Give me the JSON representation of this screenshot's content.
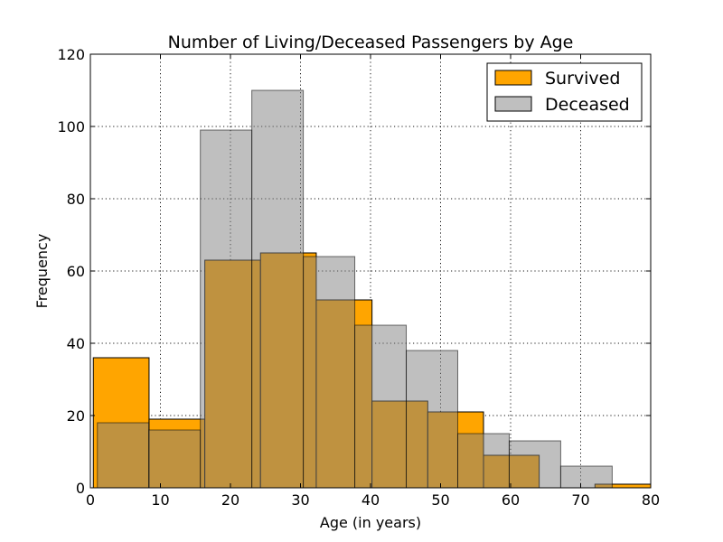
{
  "chart_data": {
    "type": "bar",
    "title": "Number of Living/Deceased Passengers by Age",
    "xlabel": "Age (in years)",
    "ylabel": "Frequency",
    "xlim": [
      0,
      80
    ],
    "ylim": [
      0,
      120
    ],
    "xticks": [
      0,
      10,
      20,
      30,
      40,
      50,
      60,
      70,
      80
    ],
    "yticks": [
      0,
      20,
      40,
      60,
      80,
      100,
      120
    ],
    "grid": true,
    "legend_position": "top-right",
    "series": [
      {
        "name": "Survived",
        "color": "#ffa500",
        "opacity": 1.0,
        "bins": [
          {
            "x0": 0.42,
            "x1": 8.38,
            "count": 36
          },
          {
            "x0": 8.38,
            "x1": 16.34,
            "count": 19
          },
          {
            "x0": 16.34,
            "x1": 24.29,
            "count": 63
          },
          {
            "x0": 24.29,
            "x1": 32.25,
            "count": 65
          },
          {
            "x0": 32.25,
            "x1": 40.21,
            "count": 52
          },
          {
            "x0": 40.21,
            "x1": 48.17,
            "count": 24
          },
          {
            "x0": 48.17,
            "x1": 56.13,
            "count": 21
          },
          {
            "x0": 56.13,
            "x1": 64.08,
            "count": 9
          },
          {
            "x0": 64.08,
            "x1": 72.04,
            "count": 0
          },
          {
            "x0": 72.04,
            "x1": 80.0,
            "count": 1
          }
        ]
      },
      {
        "name": "Deceased",
        "color": "#808080",
        "opacity": 0.5,
        "bins": [
          {
            "x0": 1.0,
            "x1": 8.35,
            "count": 18
          },
          {
            "x0": 8.35,
            "x1": 15.7,
            "count": 16
          },
          {
            "x0": 15.7,
            "x1": 23.05,
            "count": 99
          },
          {
            "x0": 23.05,
            "x1": 30.4,
            "count": 110
          },
          {
            "x0": 30.4,
            "x1": 37.75,
            "count": 64
          },
          {
            "x0": 37.75,
            "x1": 45.1,
            "count": 45
          },
          {
            "x0": 45.1,
            "x1": 52.45,
            "count": 38
          },
          {
            "x0": 52.45,
            "x1": 59.8,
            "count": 15
          },
          {
            "x0": 59.8,
            "x1": 67.15,
            "count": 13
          },
          {
            "x0": 67.15,
            "x1": 74.5,
            "count": 6
          }
        ]
      }
    ]
  }
}
